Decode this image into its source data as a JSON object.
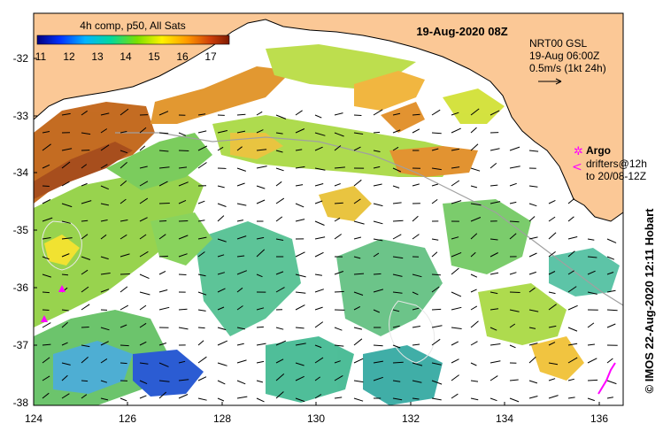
{
  "map": {
    "title": "19-Aug-2020 08Z",
    "x_ticks": [
      "124",
      "126",
      "128",
      "130",
      "132",
      "134",
      "136"
    ],
    "y_ticks": [
      "-32",
      "-33",
      "-34",
      "-35",
      "-36",
      "-37",
      "-38"
    ],
    "lon_range": [
      124,
      136.6
    ],
    "lat_range": [
      -31.4,
      -38.1
    ],
    "land_color": "#fbc896",
    "ocean_color": "#ffffff"
  },
  "colorbar": {
    "label": "4h comp, p50, All Sats",
    "ticks": [
      "11",
      "12",
      "13",
      "14",
      "15",
      "16",
      "17"
    ],
    "colors": [
      "#00007f",
      "#0032ff",
      "#00b4ff",
      "#00d8a0",
      "#7be000",
      "#fff200",
      "#ff9a00",
      "#d0400a",
      "#7f1a00"
    ]
  },
  "current_info": {
    "line1": "NRT00 GSL",
    "line2": "19-Aug 06:00Z",
    "line3": "0.5m/s (1kt 24h)"
  },
  "legend": {
    "argo_label": "Argo",
    "drifters_line1": "drifters@12h",
    "drifters_line2": "to 20/08-12Z",
    "argo_color": "#ff00ff"
  },
  "credit": "©  IMOS 22-Aug-2020 12:11 Hobart"
}
